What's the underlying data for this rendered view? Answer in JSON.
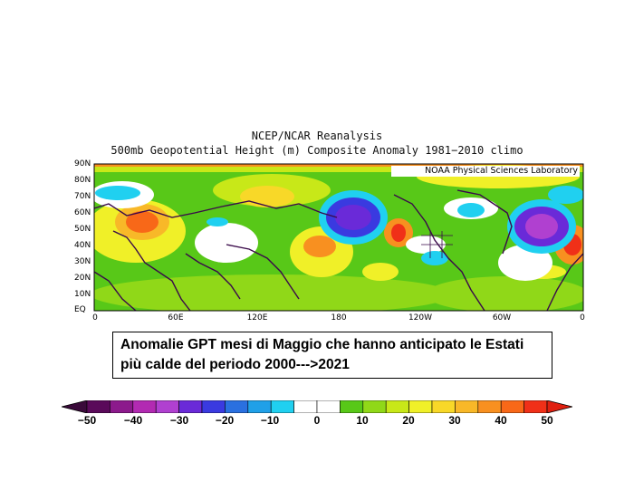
{
  "title": {
    "line1": "NCEP/NCAR Reanalysis",
    "line2": "500mb Geopotential Height (m) Composite Anomaly 1981−2010 climo"
  },
  "credit": "NOAA Physical Sciences Laboratory",
  "axes": {
    "latitude_labels": [
      "90N",
      "80N",
      "70N",
      "60N",
      "50N",
      "40N",
      "30N",
      "20N",
      "10N",
      "EQ"
    ],
    "longitude_labels": [
      "0",
      "60E",
      "120E",
      "180",
      "120W",
      "60W",
      "0"
    ]
  },
  "caption": {
    "line1": "Anomalie GPT mesi di Maggio che hanno anticipato le Estati",
    "line2": "più calde del periodo 2000--->2021"
  },
  "colorbar": {
    "labels": [
      "−50",
      "−40",
      "−30",
      "−20",
      "−10",
      "0",
      "10",
      "20",
      "30",
      "40",
      "50"
    ],
    "colors": [
      "#5a0a5a",
      "#8c1a8c",
      "#b22ab2",
      "#b040d0",
      "#6a2ad8",
      "#3a3ae0",
      "#2a70e0",
      "#20a0e8",
      "#20d0f0",
      "#ffffff",
      "#ffffff",
      "#58c818",
      "#90d818",
      "#c8e818",
      "#f0f028",
      "#f8d828",
      "#f8b828",
      "#f89020",
      "#f86818",
      "#f03018"
    ]
  }
}
